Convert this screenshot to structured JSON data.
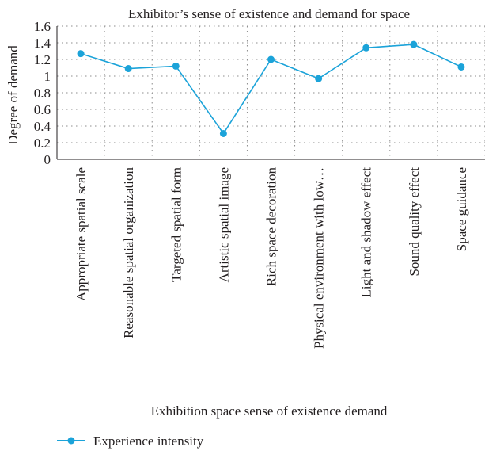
{
  "chart_data": {
    "type": "line",
    "title": "Exhibitor’s sense of existence and demand for space",
    "xlabel": "Exhibition space sense of existence demand",
    "ylabel": "Degree of demand",
    "categories": [
      "Appropriate spatial scale",
      "Reasonable spatial organization",
      "Targeted spatial form",
      "Artistic spatial image",
      "Rich space decoration",
      "Physical environment with low…",
      "Light and shadow effect",
      "Sound quality effect",
      "Space guidance"
    ],
    "series": [
      {
        "name": "Experience intensity",
        "values": [
          1.27,
          1.09,
          1.12,
          0.31,
          1.2,
          0.97,
          1.34,
          1.38,
          1.11
        ]
      }
    ],
    "ylim": [
      0,
      1.6
    ],
    "yticks": [
      "0",
      "0.2",
      "0.4",
      "0.6",
      "0.8",
      "1",
      "1.2",
      "1.4",
      "1.6"
    ],
    "grid": true,
    "legend_position": "bottom-left",
    "colors": {
      "series": "#1ba3d9",
      "grid": "#8c8c8c",
      "axis": "#231f20"
    }
  }
}
